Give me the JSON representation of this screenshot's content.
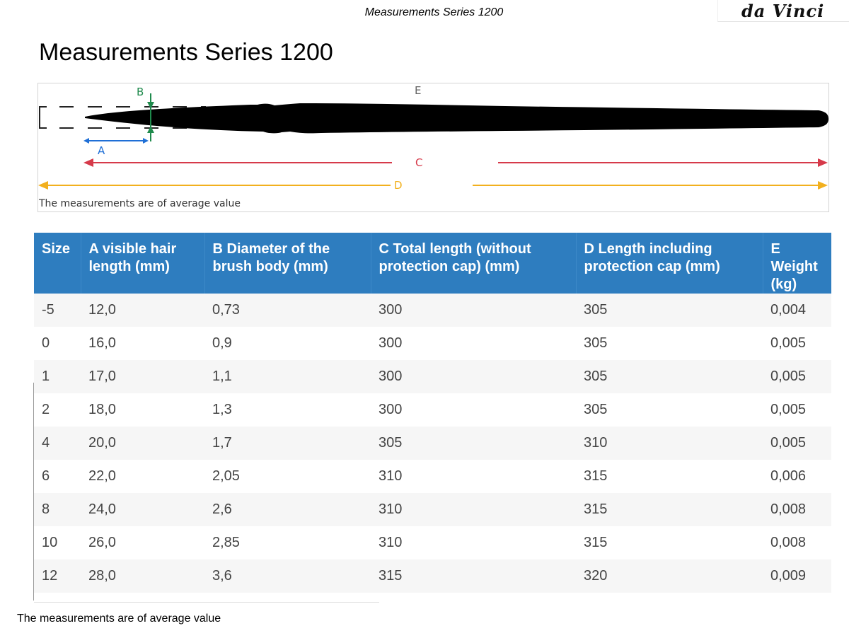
{
  "header": {
    "title": "Measurements Series 1200",
    "logo_text": "da Vinci"
  },
  "page_title": "Measurements Series 1200",
  "diagram": {
    "labels": {
      "a": "A",
      "b": "B",
      "c": "C",
      "d": "D",
      "e": "E"
    },
    "note": "The measurements are of average value",
    "colors": {
      "a": "#1f6fd6",
      "b": "#1f8a4c",
      "c": "#d63a4a",
      "d": "#f2b01e",
      "e": "#666666",
      "brush": "#000000"
    }
  },
  "table": {
    "headers": [
      "Size",
      "A visible hair length (mm)",
      "B Diameter of the brush body (mm)",
      "C Total length (without protection cap) (mm)",
      "D Length including protection cap (mm)",
      "E Weight (kg)"
    ],
    "rows": [
      [
        "-5",
        "12,0",
        "0,73",
        "300",
        "305",
        "0,004"
      ],
      [
        "0",
        "16,0",
        "0,9",
        "300",
        "305",
        "0,005"
      ],
      [
        "1",
        "17,0",
        "1,1",
        "300",
        "305",
        "0,005"
      ],
      [
        "2",
        "18,0",
        "1,3",
        "300",
        "305",
        "0,005"
      ],
      [
        "4",
        "20,0",
        "1,7",
        "305",
        "310",
        "0,005"
      ],
      [
        "6",
        "22,0",
        "2,05",
        "310",
        "315",
        "0,006"
      ],
      [
        "8",
        "24,0",
        "2,6",
        "310",
        "315",
        "0,008"
      ],
      [
        "10",
        "26,0",
        "2,85",
        "310",
        "315",
        "0,008"
      ],
      [
        "12",
        "28,0",
        "3,6",
        "315",
        "320",
        "0,009"
      ]
    ]
  },
  "footer": {
    "note": "The measurements are of average value"
  },
  "colors": {
    "table_header_bg": "#2e7dbf",
    "table_header_text": "#ffffff",
    "row_alt_bg": "#f6f6f6"
  }
}
